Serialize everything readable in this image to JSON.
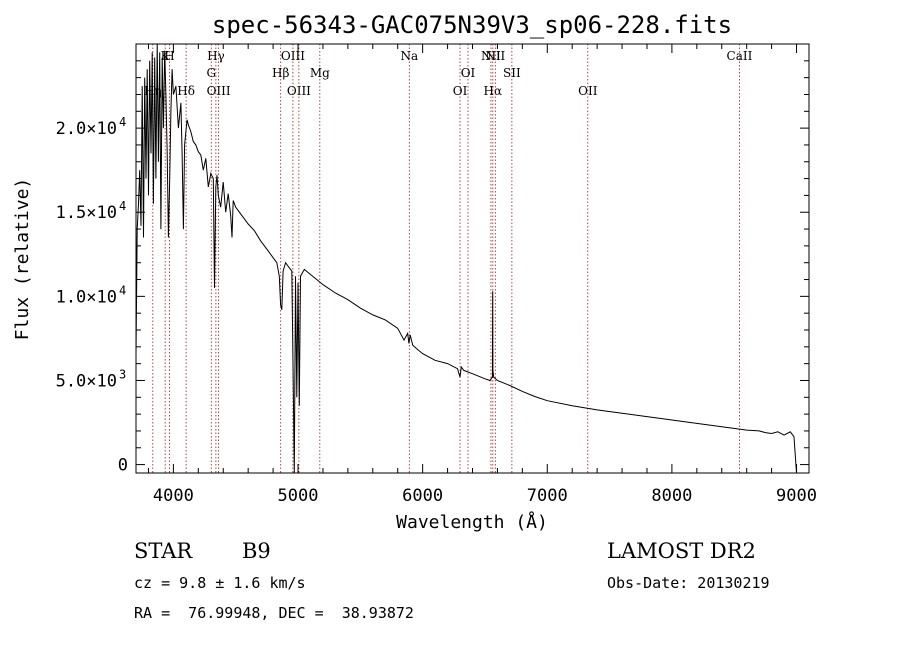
{
  "chart_data": {
    "type": "line",
    "title": "spec-56343-GAC075N39V3_sp06-228.fits",
    "xlabel": "Wavelength (Å)",
    "ylabel": "Flux (relative)",
    "xlim": [
      3700,
      9100
    ],
    "ylim": [
      -500,
      25000
    ],
    "x_ticks": [
      {
        "value": 4000,
        "label": "4000"
      },
      {
        "value": 5000,
        "label": "5000"
      },
      {
        "value": 6000,
        "label": "6000"
      },
      {
        "value": 7000,
        "label": "7000"
      },
      {
        "value": 8000,
        "label": "8000"
      },
      {
        "value": 9000,
        "label": "9000"
      }
    ],
    "y_ticks": [
      {
        "value": 0,
        "mant": "0",
        "exp": ""
      },
      {
        "value": 5000,
        "mant": "5.0×10",
        "exp": "3"
      },
      {
        "value": 10000,
        "mant": "1.0×10",
        "exp": "4"
      },
      {
        "value": 15000,
        "mant": "1.5×10",
        "exp": "4"
      },
      {
        "value": 20000,
        "mant": "2.0×10",
        "exp": "4"
      }
    ],
    "series": [
      {
        "color": "#000000",
        "x": [
          3700,
          3710,
          3720,
          3730,
          3740,
          3750,
          3760,
          3770,
          3780,
          3790,
          3800,
          3810,
          3820,
          3830,
          3840,
          3850,
          3860,
          3870,
          3880,
          3890,
          3900,
          3910,
          3920,
          3930,
          3940,
          3950,
          3960,
          3970,
          3980,
          3990,
          4000,
          4020,
          4040,
          4060,
          4070,
          4080,
          4090,
          4100,
          4110,
          4120,
          4140,
          4160,
          4180,
          4200,
          4220,
          4240,
          4260,
          4280,
          4300,
          4320,
          4330,
          4340,
          4350,
          4360,
          4380,
          4400,
          4420,
          4440,
          4460,
          4470,
          4480,
          4500,
          4550,
          4600,
          4650,
          4700,
          4750,
          4800,
          4830,
          4850,
          4860,
          4870,
          4880,
          4900,
          4920,
          4950,
          4960,
          4970,
          4980,
          4990,
          5000,
          5010,
          5020,
          5050,
          5100,
          5150,
          5200,
          5300,
          5400,
          5500,
          5600,
          5700,
          5800,
          5850,
          5880,
          5890,
          5900,
          5920,
          5950,
          6000,
          6100,
          6200,
          6280,
          6300,
          6310,
          6330,
          6400,
          6500,
          6540,
          6560,
          6562,
          6564,
          6570,
          6600,
          6700,
          6800,
          6900,
          7000,
          7200,
          7400,
          7600,
          7800,
          8000,
          8200,
          8400,
          8600,
          8700,
          8750,
          8800,
          8850,
          8900,
          8950,
          8980,
          9000
        ],
        "y": [
          6500,
          14000,
          15500,
          17500,
          14200,
          22500,
          13500,
          23000,
          17000,
          23500,
          16000,
          24000,
          18500,
          24500,
          15500,
          24200,
          17000,
          25000,
          18000,
          24500,
          14000,
          24200,
          20000,
          24600,
          22000,
          18500,
          13500,
          17000,
          21000,
          23500,
          22000,
          22500,
          20000,
          21500,
          18500,
          14000,
          19000,
          19800,
          20500,
          20200,
          19800,
          19200,
          19000,
          18600,
          18400,
          17500,
          18200,
          16500,
          17300,
          17000,
          10500,
          16500,
          17200,
          16000,
          15300,
          16800,
          15000,
          16100,
          14800,
          13500,
          15700,
          15300,
          14800,
          14300,
          13900,
          13300,
          12800,
          12300,
          12000,
          11200,
          9500,
          9200,
          11500,
          12000,
          11800,
          11500,
          6000,
          -500,
          11200,
          4000,
          10800,
          3500,
          11200,
          11600,
          11300,
          11000,
          10700,
          10200,
          9800,
          9300,
          8900,
          8600,
          8100,
          7400,
          7800,
          7200,
          7700,
          7100,
          6900,
          6600,
          6200,
          6000,
          5700,
          5200,
          5800,
          5600,
          5400,
          5100,
          5000,
          5200,
          10300,
          5600,
          5200,
          5000,
          4700,
          4350,
          4050,
          3800,
          3500,
          3250,
          3050,
          2850,
          2650,
          2450,
          2250,
          2050,
          2000,
          1900,
          1850,
          1950,
          1750,
          1950,
          1650,
          -500
        ]
      }
    ],
    "lines": [
      {
        "label": "Hη",
        "x": 3835,
        "row": 2
      },
      {
        "label": "K",
        "x": 3934,
        "row": 0
      },
      {
        "label": "H",
        "x": 3969,
        "row": 0
      },
      {
        "label": "Hδ",
        "x": 4102,
        "row": 3
      },
      {
        "label": "Hγ",
        "x": 4341,
        "row": 0
      },
      {
        "label": "G",
        "x": 4304,
        "row": 1
      },
      {
        "label": "OIII",
        "x": 4363,
        "row": 3
      },
      {
        "label": "Hβ",
        "x": 4861,
        "row": 1
      },
      {
        "label": "OIII",
        "x": 4959,
        "row": 0
      },
      {
        "label": "OIII",
        "x": 5007,
        "row": 2
      },
      {
        "label": "Mg",
        "x": 5175,
        "row": 1
      },
      {
        "label": "Na",
        "x": 5893,
        "row": 0
      },
      {
        "label": "OI",
        "x": 6300,
        "row": 2
      },
      {
        "label": "OI",
        "x": 6364,
        "row": 1
      },
      {
        "label": "NII",
        "x": 6548,
        "row": 0
      },
      {
        "label": "Hα",
        "x": 6563,
        "row": 2
      },
      {
        "label": "NII",
        "x": 6583,
        "row": 0
      },
      {
        "label": "SII",
        "x": 6716,
        "row": 1
      },
      {
        "label": "OII",
        "x": 7325,
        "row": 2
      },
      {
        "label": "CaII",
        "x": 8542,
        "row": 0
      }
    ],
    "grid": false,
    "legend": "none"
  },
  "info": {
    "class_label": "STAR",
    "subclass": "B9",
    "survey": "LAMOST DR2",
    "cz": "cz = 9.8 ± 1.6 km/s",
    "obs_date": "Obs-Date: 20130219",
    "coords": "RA =  76.99948, DEC =  38.93872"
  }
}
